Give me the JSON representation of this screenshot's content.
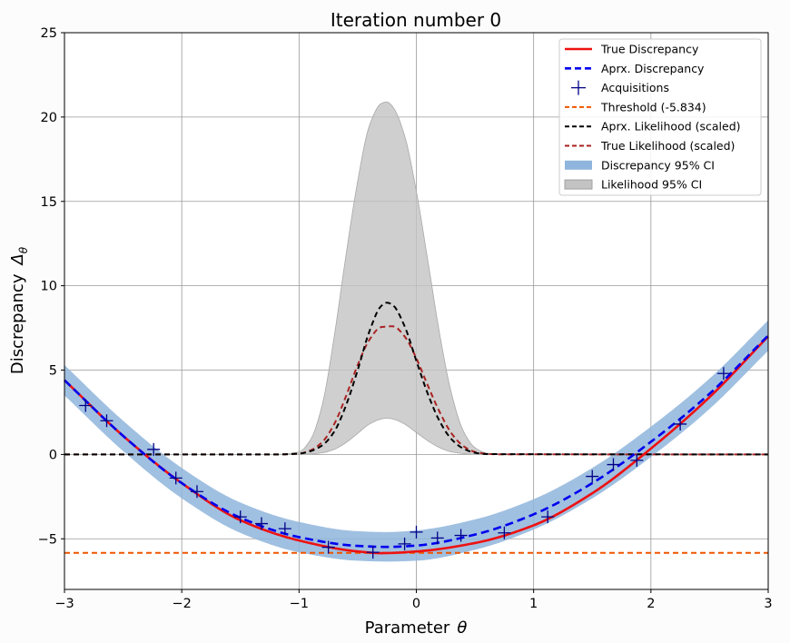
{
  "chart_data": {
    "type": "line",
    "title": "Iteration number 0",
    "xlabel": "Parameter",
    "xlabel_symbol": "θ",
    "ylabel": "Discrepancy",
    "ylabel_symbol": "Δ",
    "ylabel_symbol_sub": "θ",
    "xlim": [
      -3,
      3
    ],
    "ylim": [
      -8,
      25
    ],
    "xticks": [
      -3,
      -2,
      -1,
      0,
      1,
      2,
      3
    ],
    "xtick_labels": [
      "−3",
      "−2",
      "−1",
      "0",
      "1",
      "2",
      "3"
    ],
    "yticks": [
      -5,
      0,
      5,
      10,
      15,
      20,
      25
    ],
    "ytick_labels": [
      "−5",
      "0",
      "5",
      "10",
      "15",
      "20",
      "25"
    ],
    "grid": true,
    "legend_position": "top-right",
    "legend": [
      {
        "label": "True Discrepancy",
        "kind": "line",
        "color": "#ee1111",
        "dash": "solid"
      },
      {
        "label": "Aprx. Discrepancy",
        "kind": "line",
        "color": "#0000ee",
        "dash": "dashed"
      },
      {
        "label": "Acquisitions",
        "kind": "marker",
        "color": "#000088",
        "dash": "none"
      },
      {
        "label": "Threshold (-5.834)",
        "kind": "line",
        "color": "#ee5500",
        "dash": "dashed"
      },
      {
        "label": "Aprx. Likelihood (scaled)",
        "kind": "line",
        "color": "#000000",
        "dash": "dashed"
      },
      {
        "label": "True Likelihood (scaled)",
        "kind": "line",
        "color": "#aa2222",
        "dash": "dashed"
      },
      {
        "label": "Discrepancy 95% CI",
        "kind": "patch",
        "color": "#8fb5dc",
        "dash": "none"
      },
      {
        "label": "Likelihood 95% CI",
        "kind": "patch",
        "color": "#c3c3c3",
        "dash": "none"
      }
    ],
    "threshold": -5.834,
    "series": [
      {
        "name": "True Discrepancy",
        "x": [
          -3,
          -2.5,
          -2,
          -1.5,
          -1,
          -0.5,
          -0.3,
          0,
          0.5,
          1,
          1.5,
          2,
          2.5,
          3
        ],
        "y": [
          4.4,
          1.1,
          -1.7,
          -3.9,
          -5.1,
          -5.75,
          -5.85,
          -5.75,
          -5.25,
          -4.2,
          -2.3,
          0.35,
          3.4,
          7.0
        ]
      },
      {
        "name": "Aprx. Discrepancy",
        "x": [
          -3,
          -2.5,
          -2,
          -1.5,
          -1,
          -0.5,
          -0.25,
          0,
          0.5,
          1,
          1.5,
          2,
          2.5,
          3
        ],
        "y": [
          4.4,
          1.1,
          -1.7,
          -3.75,
          -4.9,
          -5.42,
          -5.48,
          -5.4,
          -4.75,
          -3.55,
          -1.7,
          0.75,
          3.6,
          7.05
        ]
      },
      {
        "name": "Discrepancy 95% CI",
        "x": [
          -3,
          -2.5,
          -2,
          -1.5,
          -1,
          -0.5,
          -0.25,
          0,
          0.5,
          1,
          1.5,
          2,
          2.5,
          3
        ],
        "lower": [
          3.5,
          0.2,
          -2.6,
          -4.65,
          -5.8,
          -6.3,
          -6.35,
          -6.3,
          -5.65,
          -4.45,
          -2.6,
          -0.15,
          2.7,
          6.15
        ],
        "upper": [
          5.3,
          2.0,
          -0.8,
          -2.85,
          -4.0,
          -4.55,
          -4.6,
          -4.5,
          -3.85,
          -2.65,
          -0.8,
          1.65,
          4.5,
          7.95
        ]
      },
      {
        "name": "Aprx. Likelihood (scaled)",
        "x": [
          -3,
          -1.2,
          -1.0,
          -0.9,
          -0.8,
          -0.7,
          -0.6,
          -0.5,
          -0.4,
          -0.3,
          -0.25,
          -0.2,
          -0.1,
          0,
          0.1,
          0.2,
          0.3,
          0.4,
          0.5,
          0.6,
          3
        ],
        "y": [
          0,
          0,
          0.05,
          0.2,
          0.55,
          1.35,
          2.9,
          5.0,
          7.3,
          8.8,
          9.0,
          8.85,
          7.6,
          5.55,
          3.55,
          1.95,
          0.9,
          0.35,
          0.1,
          0.02,
          0
        ]
      },
      {
        "name": "True Likelihood (scaled)",
        "x": [
          -3,
          -1.2,
          -1.0,
          -0.9,
          -0.8,
          -0.7,
          -0.6,
          -0.5,
          -0.4,
          -0.3,
          -0.2,
          -0.1,
          0,
          0.1,
          0.2,
          0.3,
          0.4,
          0.5,
          0.6,
          0.7,
          3
        ],
        "y": [
          0,
          0,
          0.05,
          0.25,
          0.75,
          1.8,
          3.45,
          5.3,
          6.8,
          7.55,
          7.6,
          7.0,
          5.7,
          4.05,
          2.5,
          1.25,
          0.5,
          0.15,
          0.04,
          0.01,
          0
        ]
      },
      {
        "name": "Likelihood 95% CI",
        "x": [
          -3,
          -1.2,
          -1.0,
          -0.9,
          -0.8,
          -0.7,
          -0.6,
          -0.5,
          -0.4,
          -0.3,
          -0.25,
          -0.2,
          -0.1,
          0,
          0.1,
          0.2,
          0.3,
          0.4,
          0.5,
          0.6,
          0.7,
          3
        ],
        "lower": [
          0,
          0,
          0.01,
          0.03,
          0.1,
          0.3,
          0.7,
          1.25,
          1.8,
          2.1,
          2.15,
          2.1,
          1.8,
          1.3,
          0.8,
          0.4,
          0.15,
          0.05,
          0.01,
          0,
          0,
          0
        ],
        "upper": [
          0,
          0,
          0.15,
          0.9,
          3.0,
          7.0,
          11.8,
          16.2,
          19.5,
          20.8,
          20.9,
          20.6,
          18.9,
          15.6,
          11.4,
          7.1,
          3.6,
          1.4,
          0.4,
          0.08,
          0.01,
          0
        ]
      },
      {
        "name": "Acquisitions",
        "x": [
          -2.82,
          -2.64,
          -2.24,
          -2.05,
          -1.87,
          -1.5,
          -1.32,
          -1.12,
          -0.75,
          -0.37,
          -0.1,
          0,
          0.18,
          0.38,
          0.75,
          1.12,
          1.5,
          1.68,
          1.88,
          2.25,
          2.62
        ],
        "y": [
          2.9,
          2.0,
          0.3,
          -1.4,
          -2.2,
          -3.7,
          -4.1,
          -4.4,
          -5.5,
          -5.8,
          -5.3,
          -4.6,
          -4.95,
          -4.8,
          -4.65,
          -3.7,
          -1.3,
          -0.6,
          -0.35,
          1.8,
          4.8
        ]
      }
    ]
  }
}
